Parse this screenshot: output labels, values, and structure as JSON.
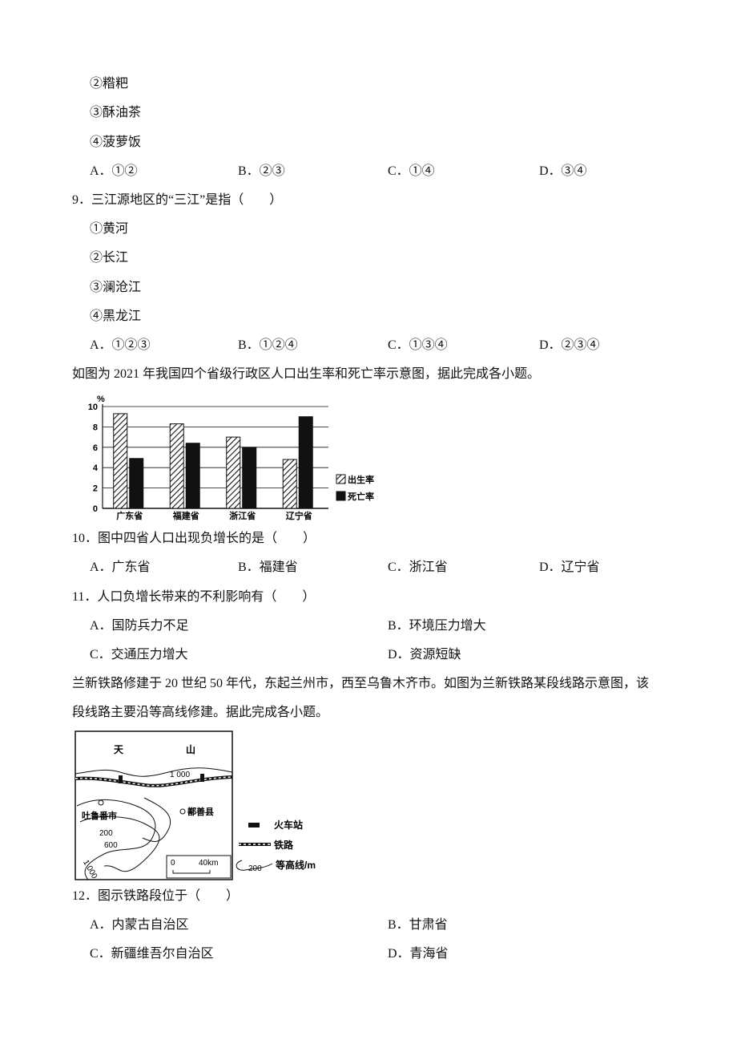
{
  "q8": {
    "choices": [
      "②糌粑",
      "③酥油茶",
      "④菠萝饭"
    ],
    "options": [
      "A．①②",
      "B．②③",
      "C．①④",
      "D．③④"
    ]
  },
  "q9": {
    "stem": "9．三江源地区的“三江”是指（　　）",
    "choices": [
      "①黄河",
      "②长江",
      "③澜沧江",
      "④黑龙江"
    ],
    "options": [
      "A．①②③",
      "B．①②④",
      "C．①③④",
      "D．②③④"
    ]
  },
  "intro1": "如图为 2021 年我国四个省级行政区人口出生率和死亡率示意图，据此完成各小题。",
  "figure1": {
    "type": "bar",
    "y_unit": "%",
    "categories": [
      "广东省",
      "福建省",
      "浙江省",
      "辽宁省"
    ],
    "series": [
      {
        "name": "出生率",
        "pattern": "hatched",
        "color": "#111111",
        "values": [
          9.3,
          8.3,
          7.0,
          4.8
        ]
      },
      {
        "name": "死亡率",
        "color": "#111111",
        "values": [
          4.9,
          6.4,
          6.0,
          9.0
        ]
      }
    ],
    "ylim": [
      0,
      10
    ],
    "yticks": [
      0,
      2,
      4,
      6,
      8,
      10
    ],
    "grid": true,
    "legend": "right"
  },
  "q10": {
    "stem": "10．图中四省人口出现负增长的是（　　）",
    "options": [
      "A．广东省",
      "B．福建省",
      "C．浙江省",
      "D．辽宁省"
    ]
  },
  "q11": {
    "stem": "11．人口负增长带来的不利影响有（　　）",
    "options": [
      "A．国防兵力不足",
      "B．环境压力增大",
      "C．交通压力增大",
      "D．资源短缺"
    ]
  },
  "intro2": [
    "兰新铁路修建于 20 世纪 50 年代，东起兰州市，西至乌鲁木齐市。如图为兰新铁路某段线路示意图，该",
    "段线路主要沿等高线修建。据此完成各小题。"
  ],
  "figure2": {
    "labels": {
      "tian": "天",
      "shan": "山",
      "contour_top": "1 000",
      "turpan": "吐鲁番市",
      "shanshan": "鄯善县",
      "c200": "200",
      "c600": "600",
      "c1000": "1 000",
      "scale_zero": "0",
      "scale": "40km"
    },
    "legend": {
      "station": "火车站",
      "railway": "铁路",
      "contour": "等高线/m",
      "contour_sample": "200"
    }
  },
  "q12": {
    "stem": "12．图示铁路段位于（　　）",
    "options": [
      "A．内蒙古自治区",
      "B．甘肃省",
      "C．新疆维吾尔自治区",
      "D．青海省"
    ]
  }
}
